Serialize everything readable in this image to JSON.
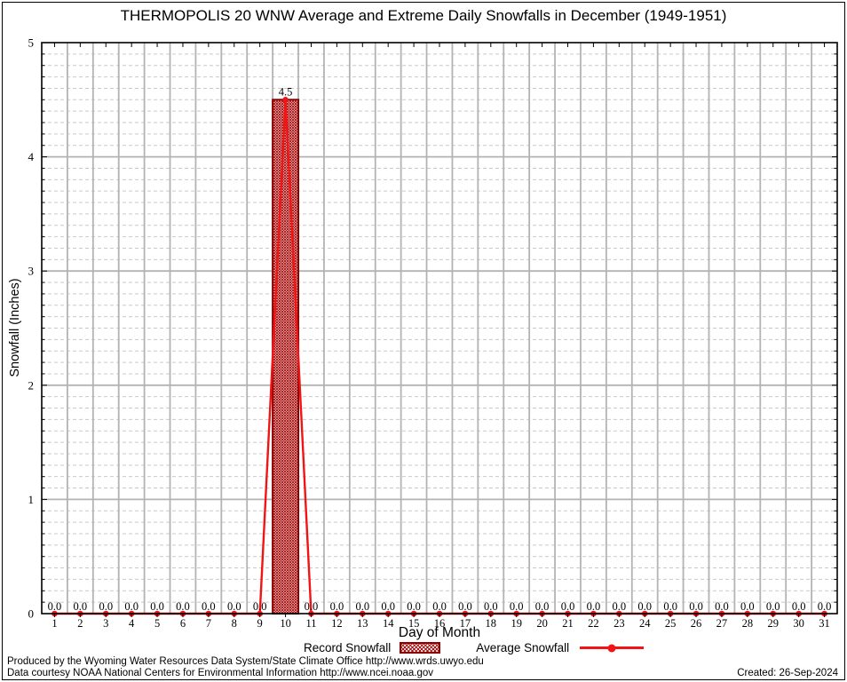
{
  "title": "THERMOPOLIS 20 WNW Average and Extreme Daily Snowfalls in December (1949-1951)",
  "chart_data": {
    "type": "bar",
    "x": [
      1,
      2,
      3,
      4,
      5,
      6,
      7,
      8,
      9,
      10,
      11,
      12,
      13,
      14,
      15,
      16,
      17,
      18,
      19,
      20,
      21,
      22,
      23,
      24,
      25,
      26,
      27,
      28,
      29,
      30,
      31
    ],
    "series": [
      {
        "name": "Record Snowfall",
        "type": "bar",
        "values": [
          0,
          0,
          0,
          0,
          0,
          0,
          0,
          0,
          0,
          4.5,
          0,
          0,
          0,
          0,
          0,
          0,
          0,
          0,
          0,
          0,
          0,
          0,
          0,
          0,
          0,
          0,
          0,
          0,
          0,
          0,
          0
        ]
      },
      {
        "name": "Average Snowfall",
        "type": "line",
        "values": [
          0,
          0,
          0,
          0,
          0,
          0,
          0,
          0,
          0,
          4.5,
          0,
          0,
          0,
          0,
          0,
          0,
          0,
          0,
          0,
          0,
          0,
          0,
          0,
          0,
          0,
          0,
          0,
          0,
          0,
          0,
          0
        ]
      }
    ],
    "data_labels": [
      "0.0",
      "0.0",
      "0.0",
      "0.0",
      "0.0",
      "0.0",
      "0.0",
      "0.0",
      "0.0",
      "4.5",
      "0.0",
      "0.0",
      "0.0",
      "0.0",
      "0.0",
      "0.0",
      "0.0",
      "0.0",
      "0.0",
      "0.0",
      "0.0",
      "0.0",
      "0.0",
      "0.0",
      "0.0",
      "0.0",
      "0.0",
      "0.0",
      "0.0",
      "0.0",
      "0.0"
    ],
    "xlabel": "Day of Month",
    "ylabel": "Snowfall (Inches)",
    "ylim": [
      0,
      5
    ],
    "yticks": [
      "0",
      "1",
      "2",
      "3",
      "4",
      "5"
    ],
    "y_minor_step": 0.1,
    "grid": true,
    "legend_position": "bottom"
  },
  "legend": {
    "record_label": "Record Snowfall",
    "average_label": "Average Snowfall"
  },
  "footer": {
    "produced": "Produced by the Wyoming Water Resources Data System/State Climate Office http://www.wrds.uwyo.edu",
    "courtesy": "Data courtesy NOAA National Centers for Environmental Information http://www.ncei.noaa.gov",
    "created": "Created: 26-Sep-2024"
  },
  "colors": {
    "bar_hatch": "#a81313",
    "bar_border": "#8b0000",
    "line": "#f21414",
    "grid_major": "#b3b3b3",
    "grid_minor": "#c9c9c9",
    "axis": "#000000",
    "text": "#000000"
  }
}
